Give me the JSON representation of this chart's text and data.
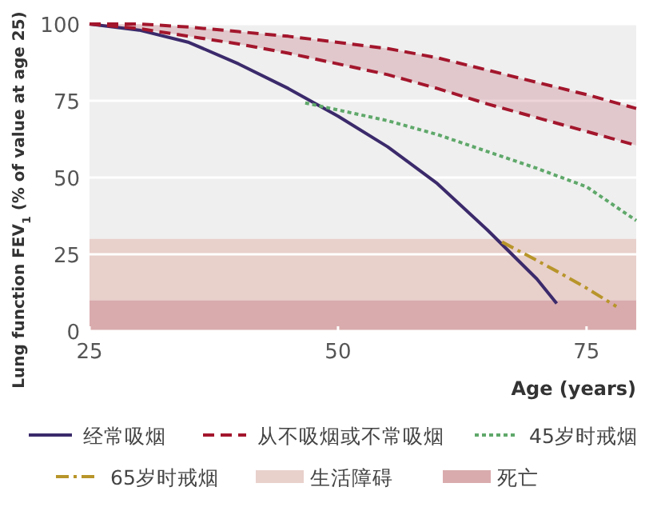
{
  "chart_data": {
    "type": "line",
    "xlabel": "Age (years)",
    "ylabel": "Lung function FEV$_{1}$ (% of value at age 25)",
    "xlim": [
      25,
      80
    ],
    "ylim": [
      0,
      100
    ],
    "xticks": [
      25,
      50,
      75
    ],
    "yticks": [
      0,
      25,
      50,
      75,
      100
    ],
    "grid": "y",
    "legend": "bottom",
    "marker": "none",
    "series": [
      {
        "name": "经常吸烟",
        "color": "#3b2a6b",
        "line_style": "solid",
        "x": [
          25,
          30,
          35,
          40,
          45,
          50,
          55,
          60,
          65,
          70,
          72
        ],
        "values": [
          100,
          98,
          94,
          87,
          79,
          70,
          60,
          48,
          33,
          17,
          9
        ]
      },
      {
        "name": "从不吸烟或不常吸烟",
        "color": "#a3162c",
        "line_style": "dashed",
        "x": [
          25,
          30,
          35,
          40,
          45,
          50,
          55,
          60,
          65,
          70,
          75,
          80
        ],
        "values": [
          100,
          100,
          99,
          97.5,
          96,
          94,
          92,
          89,
          85,
          81,
          77,
          72.5
        ],
        "lower": [
          100,
          98.5,
          96,
          93.5,
          90.5,
          87,
          83.5,
          79,
          74,
          69.5,
          65,
          60.5
        ],
        "upper": [
          100,
          100,
          99,
          97.5,
          96,
          94,
          92,
          89,
          85,
          81,
          77,
          72.5
        ]
      },
      {
        "color": "#a3162c",
        "line_style": "dashed",
        "x": [
          25,
          30,
          35,
          40,
          45,
          50,
          55,
          60,
          65,
          70,
          75,
          80
        ],
        "values": [
          100,
          98.5,
          96,
          93.5,
          90.5,
          87,
          83.5,
          79,
          74,
          69.5,
          65,
          60.5
        ]
      },
      {
        "name": "45岁时戒烟",
        "color": "#5fa86a",
        "line_style": "dotted",
        "x": [
          46.7,
          50,
          55,
          60,
          65,
          70,
          75,
          80
        ],
        "values": [
          74.3,
          72,
          68.5,
          64,
          58.5,
          53,
          47,
          36
        ]
      },
      {
        "name": "65岁时戒烟",
        "color": "#b8952a",
        "line_style": "dashdot",
        "x": [
          66.5,
          70,
          72,
          75,
          78
        ],
        "values": [
          29,
          23,
          19.5,
          14,
          8
        ]
      }
    ],
    "bands": [
      {
        "axis": "y",
        "from": 10,
        "to": 30,
        "label": "生活障碍",
        "color": "#e8d0cb"
      },
      {
        "axis": "y",
        "from": 0,
        "to": 10,
        "label": "死亡",
        "color": "#d9abad"
      }
    ]
  }
}
